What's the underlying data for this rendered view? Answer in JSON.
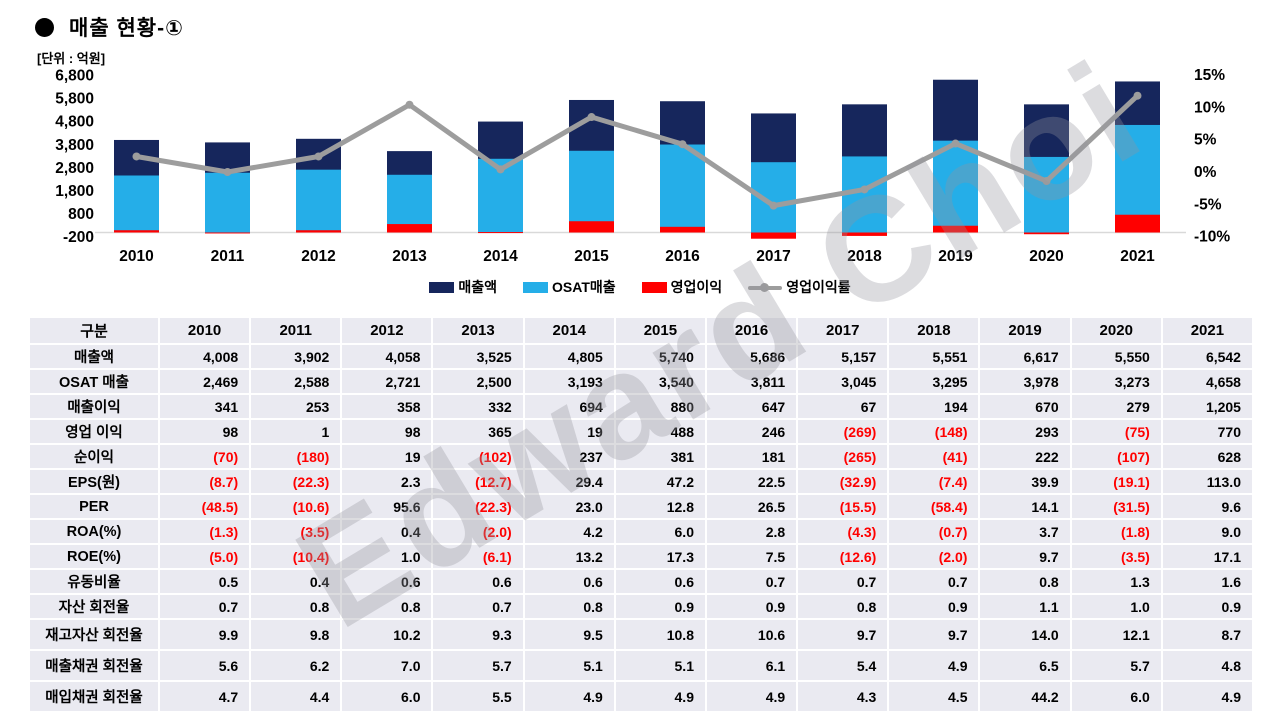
{
  "title": {
    "bullet": "●",
    "text": "매출 현황-①"
  },
  "unit_label": "[단위 : 억원]",
  "watermark": "Edward Choi",
  "colors": {
    "revenue_navy": "#16265C",
    "osat_cyan": "#25AEE8",
    "op_income_red": "#FF0000",
    "op_margin_gray": "#9D9D9D",
    "zero_line": "#D9D9D9",
    "table_cell_bg": "#EAEAF1",
    "negative_text": "#FF0000"
  },
  "chart_data": {
    "type": "bar+line",
    "title": "매출 현황-①",
    "unit": "억원",
    "categories": [
      "2010",
      "2011",
      "2012",
      "2013",
      "2014",
      "2015",
      "2016",
      "2017",
      "2018",
      "2019",
      "2020",
      "2021"
    ],
    "series": [
      {
        "name": "매출액",
        "type": "bar",
        "color": "#16265C",
        "values": [
          4008,
          3902,
          4058,
          3525,
          4805,
          5740,
          5686,
          5157,
          5551,
          6617,
          5550,
          6542
        ]
      },
      {
        "name": "OSAT매출",
        "type": "bar",
        "color": "#25AEE8",
        "values": [
          2469,
          2588,
          2721,
          2500,
          3193,
          3540,
          3811,
          3045,
          3295,
          3978,
          3273,
          4658
        ]
      },
      {
        "name": "영업이익",
        "type": "bar",
        "color": "#FF0000",
        "values": [
          98,
          1,
          98,
          365,
          19,
          488,
          246,
          -269,
          -148,
          293,
          -75,
          770
        ]
      },
      {
        "name": "영업이익률",
        "type": "line",
        "color": "#9D9D9D",
        "values_pct": [
          2.4,
          0.0,
          2.4,
          10.4,
          0.4,
          8.5,
          4.3,
          -5.2,
          -2.7,
          4.4,
          -1.4,
          11.8
        ]
      }
    ],
    "left_axis": {
      "min": -200,
      "max": 6800,
      "tick_labels": [
        "6,800",
        "5,800",
        "4,800",
        "3,800",
        "2,800",
        "1,800",
        "800",
        "-200"
      ],
      "tick_values": [
        6800,
        5800,
        4800,
        3800,
        2800,
        1800,
        800,
        -200
      ]
    },
    "right_axis": {
      "min": -10,
      "max": 15,
      "tick_labels": [
        "15%",
        "10%",
        "5%",
        "0%",
        "-5%",
        "-10%"
      ],
      "tick_values": [
        15,
        10,
        5,
        0,
        -5,
        -10
      ]
    },
    "legend_position": "bottom",
    "grid": "zero-line-only"
  },
  "table": {
    "header": [
      "구분",
      "2010",
      "2011",
      "2012",
      "2013",
      "2014",
      "2015",
      "2016",
      "2017",
      "2018",
      "2019",
      "2020",
      "2021"
    ],
    "rows": [
      {
        "label": "매출액",
        "values": [
          "4,008",
          "3,902",
          "4,058",
          "3,525",
          "4,805",
          "5,740",
          "5,686",
          "5,157",
          "5,551",
          "6,617",
          "5,550",
          "6,542"
        ]
      },
      {
        "label": "OSAT 매출",
        "values": [
          "2,469",
          "2,588",
          "2,721",
          "2,500",
          "3,193",
          "3,540",
          "3,811",
          "3,045",
          "3,295",
          "3,978",
          "3,273",
          "4,658"
        ]
      },
      {
        "label": "매출이익",
        "values": [
          "341",
          "253",
          "358",
          "332",
          "694",
          "880",
          "647",
          "67",
          "194",
          "670",
          "279",
          "1,205"
        ]
      },
      {
        "label": "영업 이익",
        "values": [
          "98",
          "1",
          "98",
          "365",
          "19",
          "488",
          "246",
          "(269)",
          "(148)",
          "293",
          "(75)",
          "770"
        ]
      },
      {
        "label": "순이익",
        "values": [
          "(70)",
          "(180)",
          "19",
          "(102)",
          "237",
          "381",
          "181",
          "(265)",
          "(41)",
          "222",
          "(107)",
          "628"
        ]
      },
      {
        "label": "EPS(원)",
        "values": [
          "(8.7)",
          "(22.3)",
          "2.3",
          "(12.7)",
          "29.4",
          "47.2",
          "22.5",
          "(32.9)",
          "(7.4)",
          "39.9",
          "(19.1)",
          "113.0"
        ]
      },
      {
        "label": "PER",
        "values": [
          "(48.5)",
          "(10.6)",
          "95.6",
          "(22.3)",
          "23.0",
          "12.8",
          "26.5",
          "(15.5)",
          "(58.4)",
          "14.1",
          "(31.5)",
          "9.6"
        ]
      },
      {
        "label": "ROA(%)",
        "values": [
          "(1.3)",
          "(3.5)",
          "0.4",
          "(2.0)",
          "4.2",
          "6.0",
          "2.8",
          "(4.3)",
          "(0.7)",
          "3.7",
          "(1.8)",
          "9.0"
        ]
      },
      {
        "label": "ROE(%)",
        "values": [
          "(5.0)",
          "(10.4)",
          "1.0",
          "(6.1)",
          "13.2",
          "17.3",
          "7.5",
          "(12.6)",
          "(2.0)",
          "9.7",
          "(3.5)",
          "17.1"
        ]
      },
      {
        "label": "유동비율",
        "values": [
          "0.5",
          "0.4",
          "0.6",
          "0.6",
          "0.6",
          "0.6",
          "0.7",
          "0.7",
          "0.7",
          "0.8",
          "1.3",
          "1.6"
        ]
      },
      {
        "label": "자산 회전율",
        "values": [
          "0.7",
          "0.8",
          "0.8",
          "0.7",
          "0.8",
          "0.9",
          "0.9",
          "0.8",
          "0.9",
          "1.1",
          "1.0",
          "0.9"
        ]
      },
      {
        "label": "재고자산 회전율",
        "values": [
          "9.9",
          "9.8",
          "10.2",
          "9.3",
          "9.5",
          "10.8",
          "10.6",
          "9.7",
          "9.7",
          "14.0",
          "12.1",
          "8.7"
        ]
      },
      {
        "label": "매출채권 회전율",
        "values": [
          "5.6",
          "6.2",
          "7.0",
          "5.7",
          "5.1",
          "5.1",
          "6.1",
          "5.4",
          "4.9",
          "6.5",
          "5.7",
          "4.8"
        ]
      },
      {
        "label": "매입채권 회전율",
        "values": [
          "4.7",
          "4.4",
          "6.0",
          "5.5",
          "4.9",
          "4.9",
          "4.9",
          "4.3",
          "4.5",
          "44.2",
          "6.0",
          "4.9"
        ]
      }
    ]
  }
}
